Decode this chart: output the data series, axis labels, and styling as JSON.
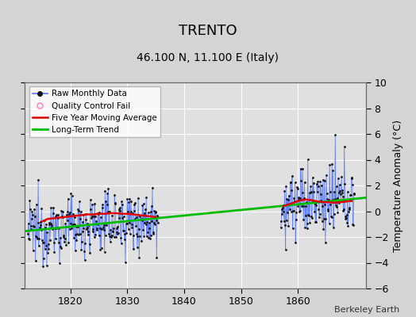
{
  "title": "TRENTO",
  "subtitle": "46.100 N, 11.100 E (Italy)",
  "ylabel_right": "Temperature Anomaly (°C)",
  "attribution": "Berkeley Earth",
  "xlim": [
    1812,
    1872
  ],
  "ylim": [
    -6,
    10
  ],
  "yticks": [
    -6,
    -4,
    -2,
    0,
    2,
    4,
    6,
    8,
    10
  ],
  "xticks": [
    1820,
    1830,
    1840,
    1850,
    1860
  ],
  "background_color": "#d4d4d4",
  "plot_bg_color": "#e0e0e0",
  "grid_color": "#ffffff",
  "segment1_start": 1812.5,
  "segment1_end": 1835.5,
  "segment2_start": 1857.0,
  "segment2_end": 1870.0,
  "trend_x": [
    1812,
    1872
  ],
  "trend_y": [
    -1.55,
    1.05
  ],
  "moving_avg1_x": [
    1815.0,
    1816,
    1817,
    1818,
    1819,
    1820,
    1821,
    1822,
    1823,
    1824,
    1825,
    1826,
    1827,
    1828,
    1829,
    1830,
    1831,
    1832,
    1833,
    1834,
    1835
  ],
  "moving_avg1_y": [
    -0.8,
    -0.6,
    -0.55,
    -0.5,
    -0.45,
    -0.4,
    -0.35,
    -0.3,
    -0.25,
    -0.25,
    -0.2,
    -0.2,
    -0.15,
    -0.15,
    -0.2,
    -0.2,
    -0.25,
    -0.3,
    -0.35,
    -0.4,
    -0.45
  ],
  "moving_avg2_x": [
    1857.5,
    1858.5,
    1859.5,
    1860.5,
    1861.5,
    1862.5,
    1863.5,
    1864.5,
    1865.5,
    1866.5,
    1867.5,
    1868.5,
    1869.5
  ],
  "moving_avg2_y": [
    0.4,
    0.55,
    0.7,
    0.85,
    0.9,
    0.85,
    0.75,
    0.7,
    0.7,
    0.65,
    0.7,
    0.75,
    0.8
  ],
  "raw_data_seed": 12345,
  "line_color_blue": "#5577ff",
  "dot_color": "#111111",
  "moving_avg_color": "#dd0000",
  "trend_color": "#00bb00",
  "legend_bg": "#ffffff",
  "title_fontsize": 13,
  "subtitle_fontsize": 10,
  "axis_fontsize": 9,
  "tick_fontsize": 9
}
